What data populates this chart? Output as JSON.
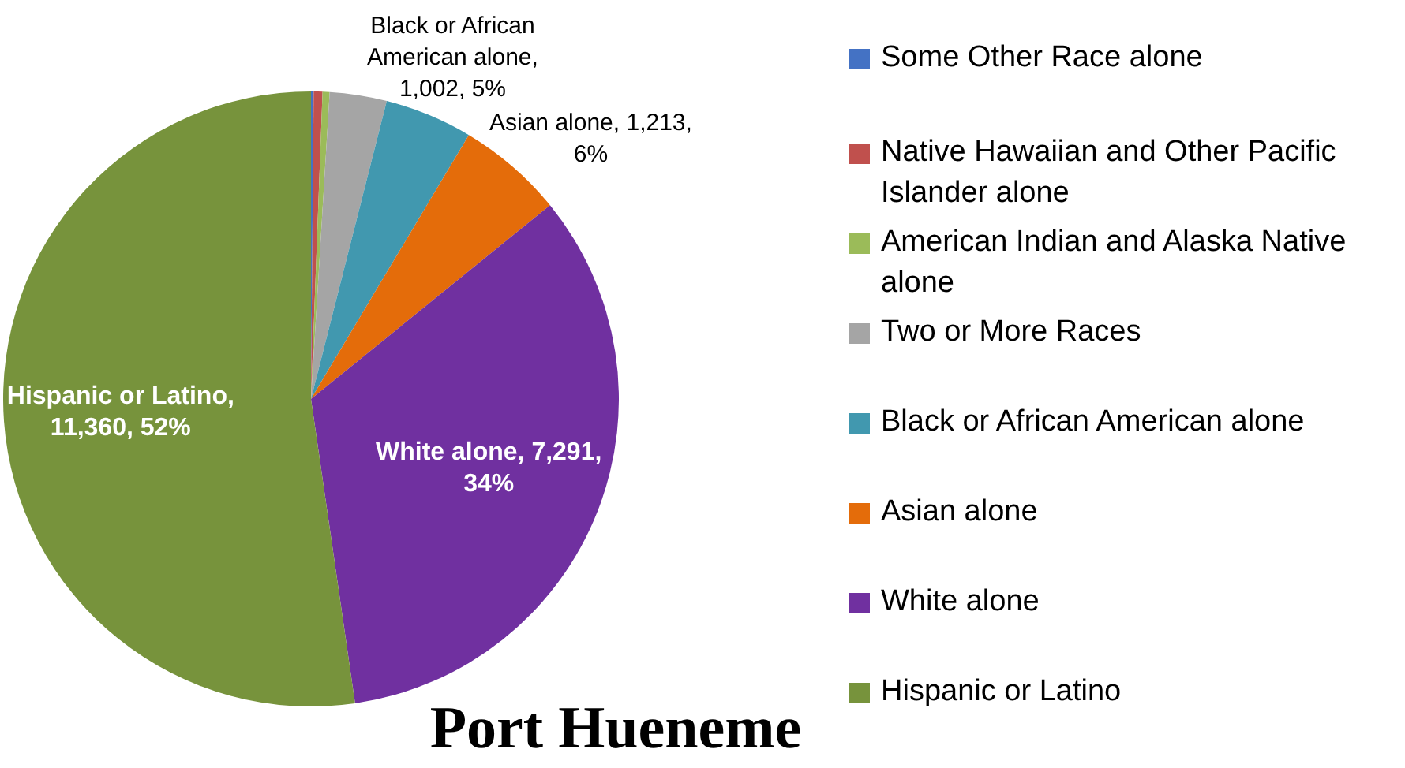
{
  "chart_data": {
    "type": "pie",
    "title": "Port Hueneme",
    "categories": [
      "Some Other Race alone",
      "Native Hawaiian and Other Pacific Islander alone",
      "American Indian and Alaska Native alone",
      "Two or More Races",
      "Black or African American alone",
      "Asian alone",
      "White alone",
      "Hispanic or Latino"
    ],
    "values": [
      30,
      100,
      80,
      650,
      1002,
      1213,
      7291,
      11360
    ],
    "colors": [
      "#4472c4",
      "#c0504d",
      "#9bbb59",
      "#a5a5a5",
      "#4198af",
      "#e46c0a",
      "#7030a0",
      "#77933c"
    ],
    "value_labels": [
      null,
      null,
      null,
      null,
      "Black or African American alone, 1,002, 5%",
      "Asian alone, 1,213, 6%",
      "White alone, 7,291, 34%",
      "Hispanic or Latino, 11,360, 52%"
    ],
    "legend": "right"
  }
}
